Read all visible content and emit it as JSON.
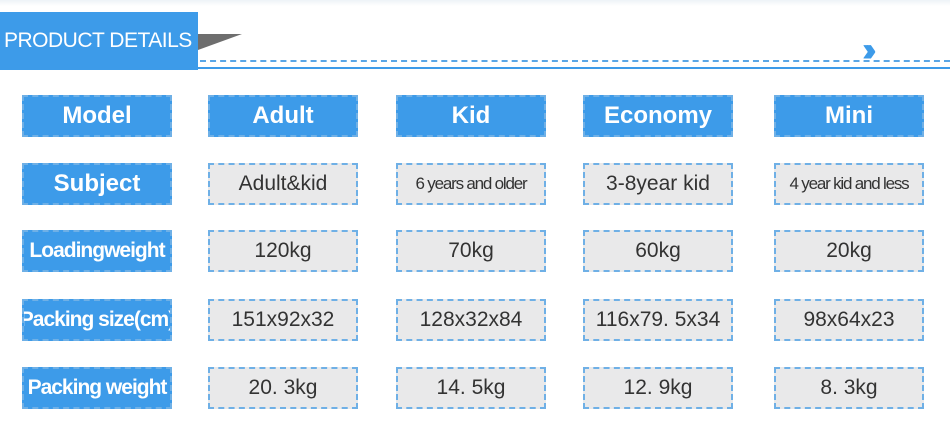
{
  "header": {
    "title": "PRODUCT DETAILS",
    "more_icon": "double-chevron-right-icon"
  },
  "colors": {
    "accent": "#3d9be9",
    "cell_bg": "#e9e9ea"
  },
  "table": {
    "columns": [
      "Model",
      "Adult",
      "Kid",
      "Economy",
      "Mini"
    ],
    "rows": [
      {
        "label": "Subject",
        "values": [
          "Adult&kid",
          "6 years and older",
          "3-8year kid",
          "4 year kid and less"
        ]
      },
      {
        "label": "Loadingweight",
        "values": [
          "120kg",
          "70kg",
          "60kg",
          "20kg"
        ]
      },
      {
        "label": "Packing size(cm)",
        "values": [
          "151x92x32",
          "128x32x84",
          "116x79. 5x34",
          "98x64x23"
        ]
      },
      {
        "label": "Packing weight",
        "values": [
          "20. 3kg",
          "14. 5kg",
          "12. 9kg",
          "8. 3kg"
        ]
      }
    ]
  }
}
